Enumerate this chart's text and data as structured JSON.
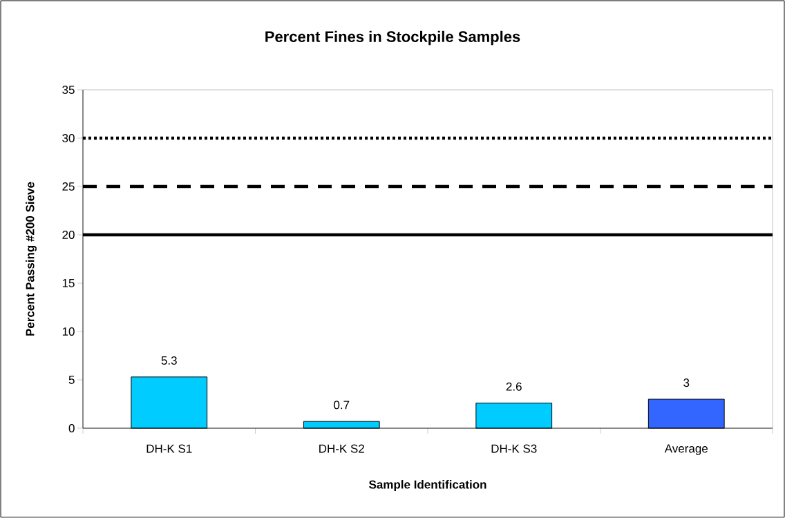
{
  "chart_data": {
    "type": "bar",
    "title": "Percent Fines in Stockpile Samples",
    "xlabel": "Sample Identification",
    "ylabel": "Percent Passing #200 Sieve",
    "categories": [
      "DH-K S1",
      "DH-K S2",
      "DH-K S3",
      "Average"
    ],
    "values": [
      5.3,
      0.7,
      2.6,
      3
    ],
    "colors": [
      "#00ccff",
      "#00ccff",
      "#00ccff",
      "#3366ff"
    ],
    "ylim": [
      0,
      35
    ],
    "yticks": [
      0,
      5,
      10,
      15,
      20,
      25,
      30,
      35
    ],
    "data_labels": true,
    "grid": false,
    "ref_lines": [
      {
        "axis": "y",
        "value": 30,
        "color": "#000000",
        "line_style": "dotted"
      },
      {
        "axis": "y",
        "value": 25,
        "color": "#000000",
        "line_style": "dashed"
      },
      {
        "axis": "y",
        "value": 20,
        "color": "#000000",
        "line_style": "solid"
      }
    ]
  }
}
